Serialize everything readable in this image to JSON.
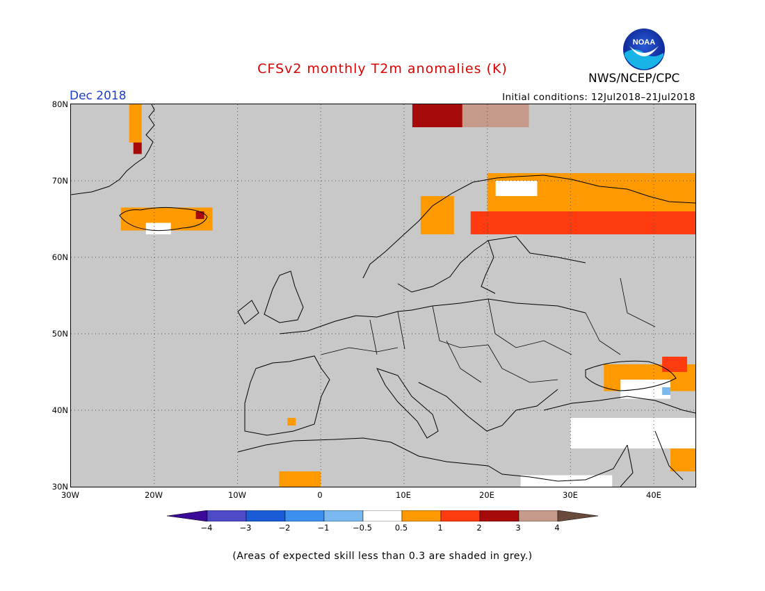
{
  "title": "CFSv2 monthly T2m anomalies (K)",
  "agency": "NWS/NCEP/CPC",
  "logo_text": "NOAA",
  "period": "Dec 2018",
  "initial_conditions": "Initial conditions: 12Jul2018–21Jul2018",
  "footnote": "(Areas of expected skill less than 0.3 are shaded in grey.)",
  "colors": {
    "title": "#dd0000",
    "period": "#1a3ecc",
    "land_ocean_low_skill": "#c8c8c8"
  },
  "map": {
    "projection": "lat-lon",
    "lon_range": [
      -30,
      45
    ],
    "lat_range": [
      30,
      80
    ],
    "gridlines": "dotted",
    "y_ticks": [
      "80N",
      "70N",
      "60N",
      "50N",
      "40N",
      "30N"
    ],
    "x_ticks": [
      "30W",
      "20W",
      "10W",
      "0",
      "10E",
      "20E",
      "30E",
      "40E"
    ],
    "anomaly_regions": [
      {
        "name": "Greenland east coast",
        "category": "0.5-1",
        "lon": [
          -23,
          -21.5
        ],
        "lat": [
          75,
          80
        ]
      },
      {
        "name": "Greenland coast red",
        "category": "2-3",
        "lon": [
          -22.5,
          -21.5
        ],
        "lat": [
          73.5,
          75
        ]
      },
      {
        "name": "Iceland",
        "category": "0.5-1",
        "lon": [
          -24,
          -13
        ],
        "lat": [
          63.5,
          66.5
        ]
      },
      {
        "name": "Iceland south",
        "category": "-0.5-0.5",
        "lon": [
          -21,
          -18
        ],
        "lat": [
          63,
          64.5
        ]
      },
      {
        "name": "Iceland east red",
        "category": "2-3",
        "lon": [
          -15,
          -14
        ],
        "lat": [
          65,
          66
        ]
      },
      {
        "name": "Svalbard",
        "category": "2-3",
        "lon": [
          11,
          20
        ],
        "lat": [
          77,
          80
        ]
      },
      {
        "name": "Svalbard east",
        "category": "3-4",
        "lon": [
          17,
          25
        ],
        "lat": [
          77,
          80
        ]
      },
      {
        "name": "North Scandinavia",
        "category": "0.5-1",
        "lon": [
          20,
          45
        ],
        "lat": [
          66,
          71
        ]
      },
      {
        "name": "Northern Russia",
        "category": "1-2",
        "lon": [
          18,
          45
        ],
        "lat": [
          63,
          66
        ]
      },
      {
        "name": "Norway coast",
        "category": "0.5-1",
        "lon": [
          12,
          16
        ],
        "lat": [
          63,
          68
        ]
      },
      {
        "name": "Northern Finland white",
        "category": "-0.5-0.5",
        "lon": [
          21,
          26
        ],
        "lat": [
          68,
          70
        ]
      },
      {
        "name": "Black Sea east",
        "category": "0.5-1",
        "lon": [
          34,
          45
        ],
        "lat": [
          42.5,
          46
        ]
      },
      {
        "name": "Caucasus red",
        "category": "1-2",
        "lon": [
          41,
          44
        ],
        "lat": [
          45,
          47
        ]
      },
      {
        "name": "Caucasus white",
        "category": "-0.5-0.5",
        "lon": [
          36,
          42
        ],
        "lat": [
          41.5,
          44
        ]
      },
      {
        "name": "Caucasus blue",
        "category": "-1--0.5",
        "lon": [
          41,
          42
        ],
        "lat": [
          42,
          43
        ]
      },
      {
        "name": "Spain",
        "category": "0.5-1",
        "lon": [
          -4,
          -3
        ],
        "lat": [
          38,
          39
        ]
      },
      {
        "name": "North Africa",
        "category": "0.5-1",
        "lon": [
          -5,
          0
        ],
        "lat": [
          30,
          32
        ]
      },
      {
        "name": "Turkey south",
        "category": "-0.5-0.5",
        "lon": [
          30,
          45
        ],
        "lat": [
          35,
          39
        ]
      },
      {
        "name": "Middle East",
        "category": "0.5-1",
        "lon": [
          42,
          45
        ],
        "lat": [
          32,
          35
        ]
      },
      {
        "name": "Egypt coast",
        "category": "-0.5-0.5",
        "lon": [
          24,
          35
        ],
        "lat": [
          30,
          31.5
        ]
      }
    ]
  },
  "colorbar": {
    "categories": [
      {
        "label": "<-4",
        "color": "#3b0a99"
      },
      {
        "label": "-4 to -3",
        "color": "#4d49c7"
      },
      {
        "label": "-3 to -2",
        "color": "#1a5bd6"
      },
      {
        "label": "-2 to -1",
        "color": "#3d8ff0"
      },
      {
        "label": "-1 to -0.5",
        "color": "#7ab9f0"
      },
      {
        "label": "-0.5 to 0.5",
        "color": "#ffffff"
      },
      {
        "label": "0.5 to 1",
        "color": "#ff9900"
      },
      {
        "label": "1 to 2",
        "color": "#ff3b0f"
      },
      {
        "label": "2 to 3",
        "color": "#a60a0a"
      },
      {
        "label": "3 to 4",
        "color": "#c59a8a"
      },
      {
        "label": ">4",
        "color": "#6a4a3a"
      }
    ],
    "tick_labels": [
      "−4",
      "−3",
      "−2",
      "−1",
      "−0.5",
      "0.5",
      "1",
      "2",
      "3",
      "4"
    ]
  }
}
